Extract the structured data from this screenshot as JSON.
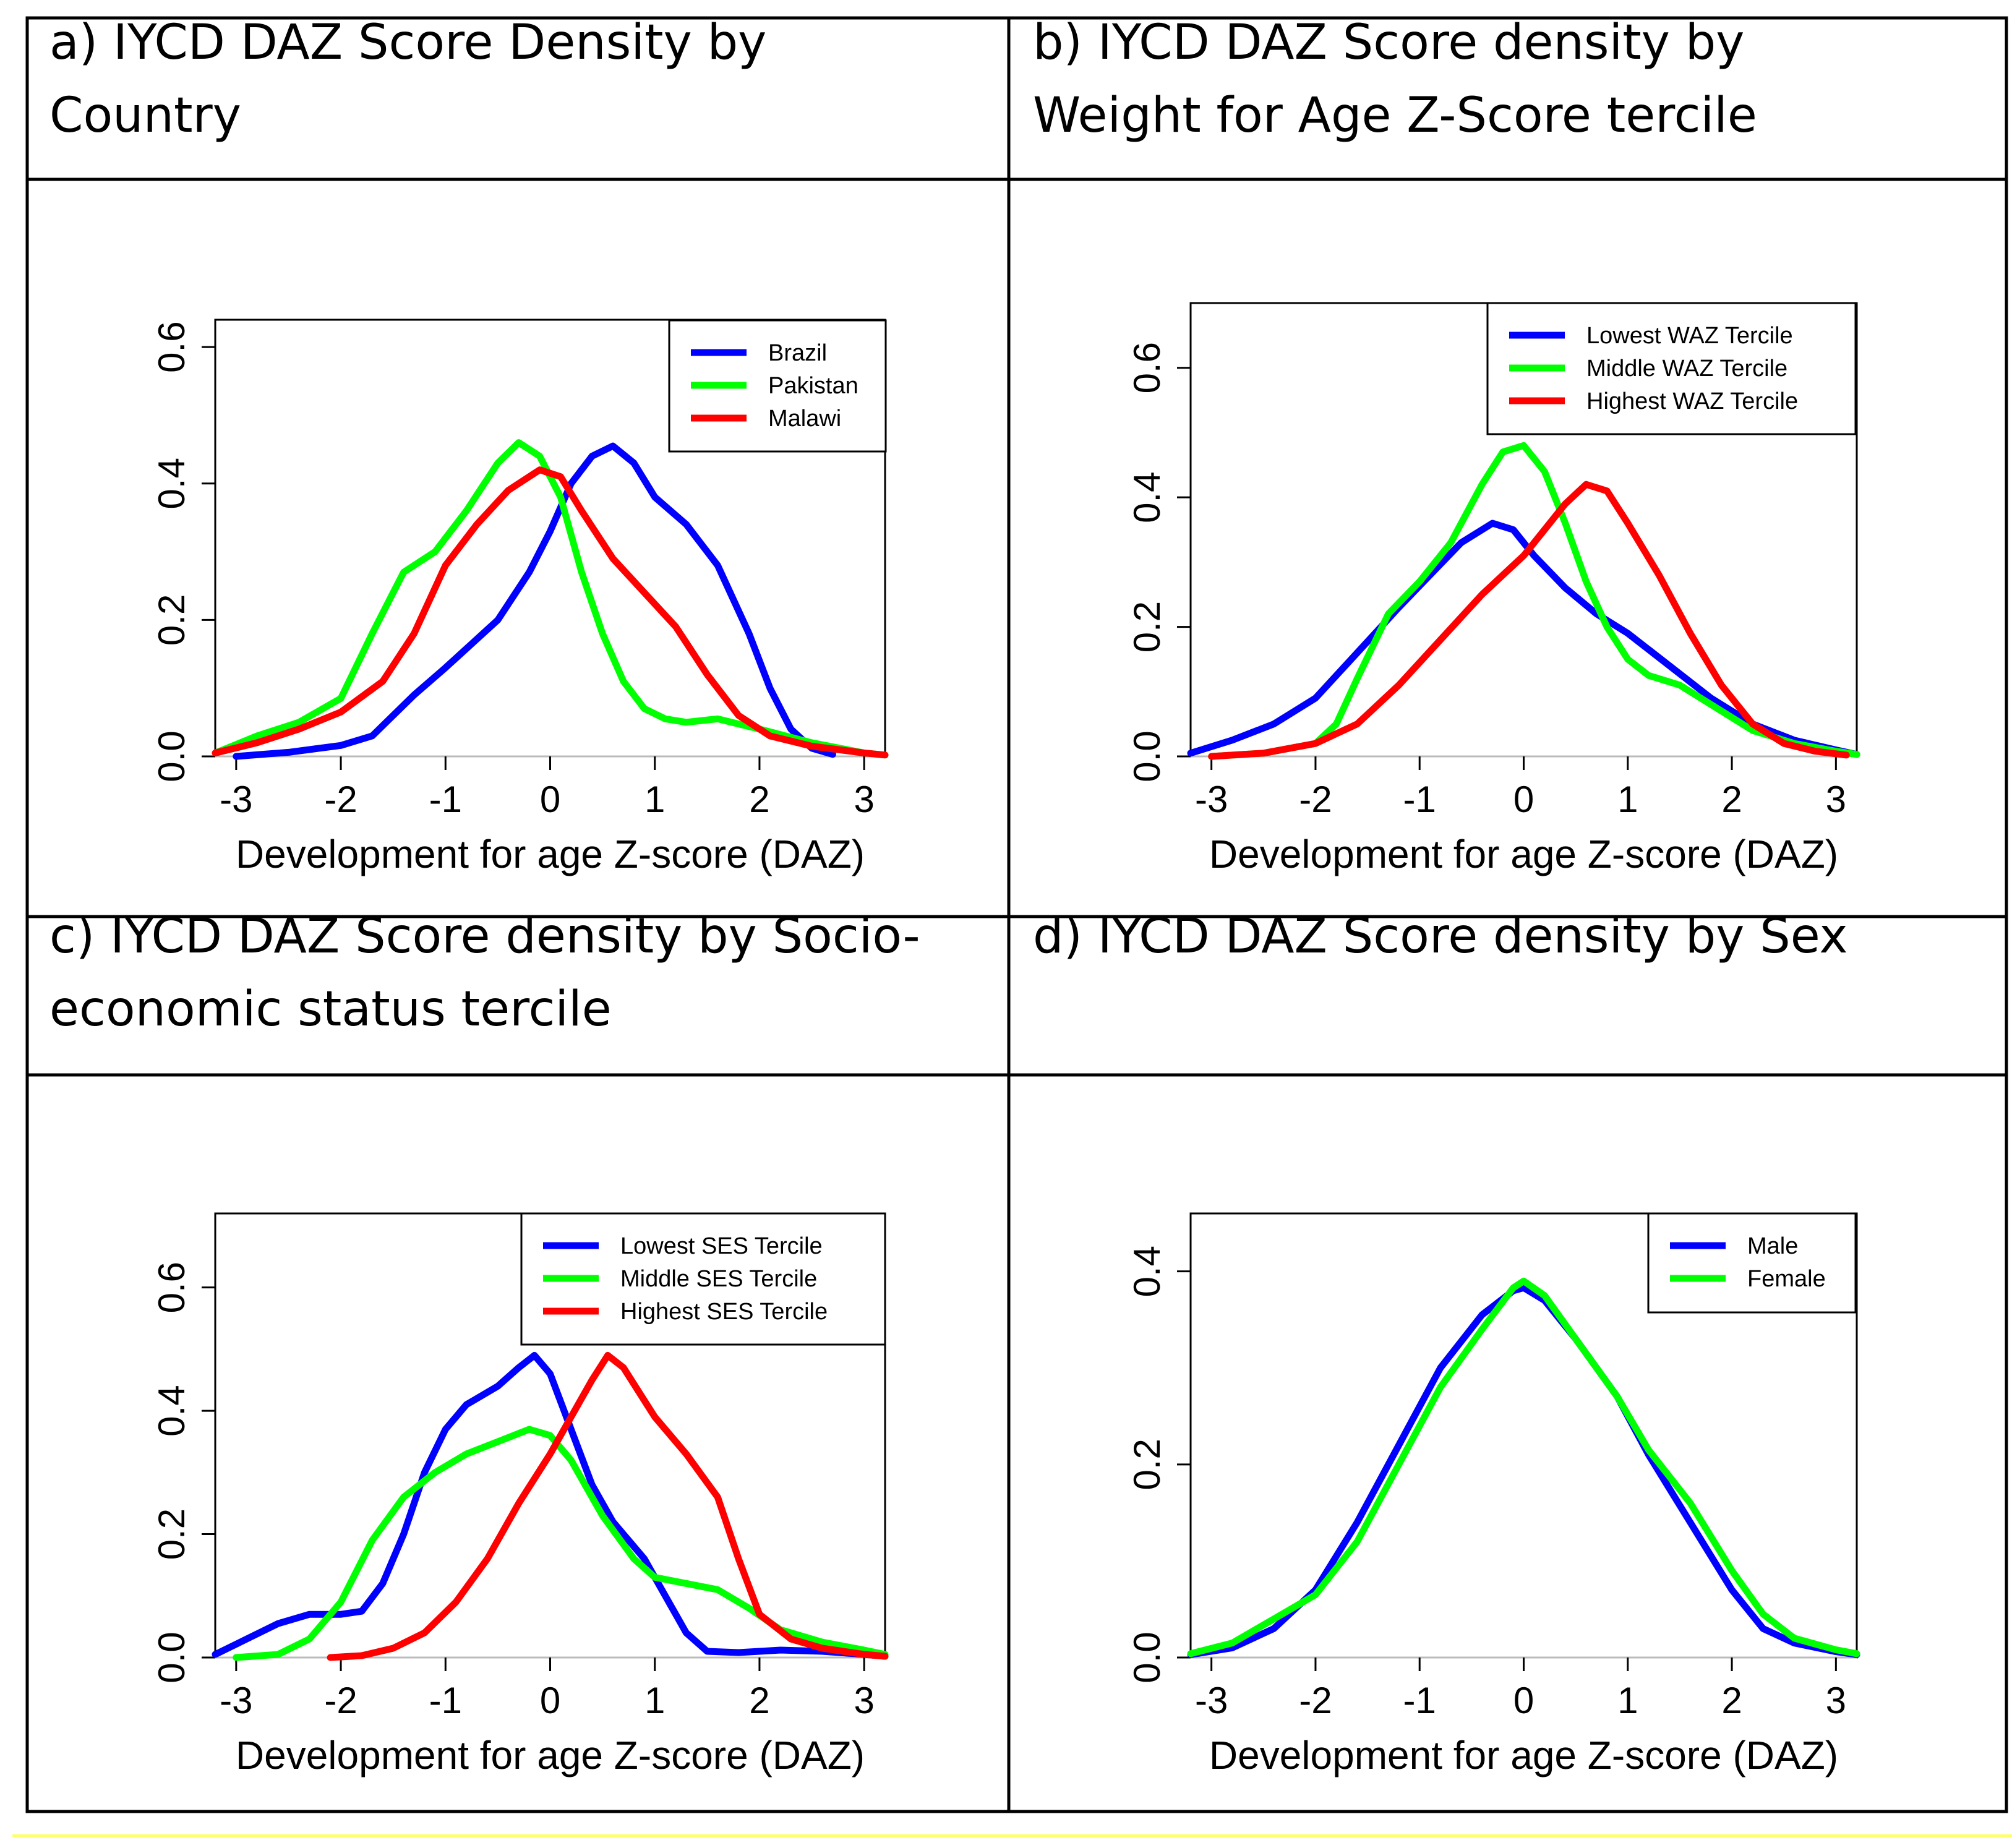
{
  "chart_data": [
    {
      "type": "line",
      "title": "a) IYCD DAZ Score Density by Country",
      "xlabel": "Development for age Z-score (DAZ)",
      "ylabel": "",
      "xlim": [
        -3.2,
        3.2
      ],
      "ylim": [
        0,
        0.64
      ],
      "xticks": [
        "-3",
        "-2",
        "-1",
        "0",
        "1",
        "2",
        "3"
      ],
      "yticks": [
        "0.0",
        "0.2",
        "0.4",
        "0.6"
      ],
      "legend_position": "top-right",
      "series": [
        {
          "name": "Brazil",
          "color": "#0000ff",
          "points": [
            [
              -3.0,
              0.0
            ],
            [
              -2.5,
              0.006
            ],
            [
              -2.0,
              0.016
            ],
            [
              -1.7,
              0.03
            ],
            [
              -1.3,
              0.09
            ],
            [
              -1.0,
              0.13
            ],
            [
              -0.5,
              0.2
            ],
            [
              -0.2,
              0.27
            ],
            [
              0.0,
              0.33
            ],
            [
              0.2,
              0.4
            ],
            [
              0.4,
              0.44
            ],
            [
              0.6,
              0.455
            ],
            [
              0.8,
              0.43
            ],
            [
              1.0,
              0.38
            ],
            [
              1.3,
              0.34
            ],
            [
              1.6,
              0.28
            ],
            [
              1.9,
              0.18
            ],
            [
              2.1,
              0.1
            ],
            [
              2.3,
              0.04
            ],
            [
              2.5,
              0.012
            ],
            [
              2.7,
              0.003
            ]
          ]
        },
        {
          "name": "Pakistan",
          "color": "#00ff00",
          "points": [
            [
              -3.2,
              0.005
            ],
            [
              -2.8,
              0.03
            ],
            [
              -2.4,
              0.05
            ],
            [
              -2.0,
              0.085
            ],
            [
              -1.7,
              0.18
            ],
            [
              -1.4,
              0.27
            ],
            [
              -1.1,
              0.3
            ],
            [
              -0.8,
              0.36
            ],
            [
              -0.5,
              0.43
            ],
            [
              -0.3,
              0.46
            ],
            [
              -0.1,
              0.44
            ],
            [
              0.1,
              0.38
            ],
            [
              0.3,
              0.27
            ],
            [
              0.5,
              0.18
            ],
            [
              0.7,
              0.11
            ],
            [
              0.9,
              0.07
            ],
            [
              1.1,
              0.055
            ],
            [
              1.3,
              0.05
            ],
            [
              1.6,
              0.055
            ],
            [
              2.0,
              0.04
            ],
            [
              2.5,
              0.02
            ],
            [
              3.0,
              0.005
            ],
            [
              3.2,
              0.002
            ]
          ]
        },
        {
          "name": "Malawi",
          "color": "#ff0000",
          "points": [
            [
              -3.2,
              0.005
            ],
            [
              -2.8,
              0.02
            ],
            [
              -2.4,
              0.04
            ],
            [
              -2.0,
              0.065
            ],
            [
              -1.6,
              0.11
            ],
            [
              -1.3,
              0.18
            ],
            [
              -1.0,
              0.28
            ],
            [
              -0.7,
              0.34
            ],
            [
              -0.4,
              0.39
            ],
            [
              -0.1,
              0.42
            ],
            [
              0.1,
              0.41
            ],
            [
              0.3,
              0.36
            ],
            [
              0.6,
              0.29
            ],
            [
              0.9,
              0.24
            ],
            [
              1.2,
              0.19
            ],
            [
              1.5,
              0.12
            ],
            [
              1.8,
              0.06
            ],
            [
              2.1,
              0.03
            ],
            [
              2.5,
              0.015
            ],
            [
              3.0,
              0.005
            ],
            [
              3.2,
              0.002
            ]
          ]
        }
      ]
    },
    {
      "type": "line",
      "title": "b) IYCD DAZ Score density by Weight for Age Z-Score tercile",
      "xlabel": "Development for age Z-score (DAZ)",
      "ylabel": "",
      "xlim": [
        -3.2,
        3.2
      ],
      "ylim": [
        0,
        0.7
      ],
      "xticks": [
        "-3",
        "-2",
        "-1",
        "0",
        "1",
        "2",
        "3"
      ],
      "yticks": [
        "0.0",
        "0.2",
        "0.4",
        "0.6"
      ],
      "legend_position": "top-right",
      "series": [
        {
          "name": "Lowest WAZ Tercile",
          "color": "#0000ff",
          "points": [
            [
              -3.2,
              0.005
            ],
            [
              -2.8,
              0.025
            ],
            [
              -2.4,
              0.05
            ],
            [
              -2.0,
              0.09
            ],
            [
              -1.6,
              0.16
            ],
            [
              -1.2,
              0.23
            ],
            [
              -0.9,
              0.28
            ],
            [
              -0.6,
              0.33
            ],
            [
              -0.3,
              0.36
            ],
            [
              -0.1,
              0.35
            ],
            [
              0.1,
              0.31
            ],
            [
              0.4,
              0.26
            ],
            [
              0.7,
              0.22
            ],
            [
              1.0,
              0.19
            ],
            [
              1.4,
              0.14
            ],
            [
              1.8,
              0.09
            ],
            [
              2.2,
              0.05
            ],
            [
              2.6,
              0.025
            ],
            [
              3.0,
              0.01
            ],
            [
              3.2,
              0.003
            ]
          ]
        },
        {
          "name": "Middle WAZ Tercile",
          "color": "#00ff00",
          "points": [
            [
              -3.0,
              0.0
            ],
            [
              -2.5,
              0.005
            ],
            [
              -2.0,
              0.02
            ],
            [
              -1.8,
              0.05
            ],
            [
              -1.6,
              0.12
            ],
            [
              -1.3,
              0.22
            ],
            [
              -1.0,
              0.27
            ],
            [
              -0.7,
              0.33
            ],
            [
              -0.4,
              0.42
            ],
            [
              -0.2,
              0.47
            ],
            [
              0.0,
              0.48
            ],
            [
              0.2,
              0.44
            ],
            [
              0.4,
              0.36
            ],
            [
              0.6,
              0.27
            ],
            [
              0.8,
              0.2
            ],
            [
              1.0,
              0.15
            ],
            [
              1.2,
              0.125
            ],
            [
              1.5,
              0.11
            ],
            [
              1.8,
              0.08
            ],
            [
              2.2,
              0.04
            ],
            [
              2.6,
              0.02
            ],
            [
              3.0,
              0.008
            ],
            [
              3.2,
              0.003
            ]
          ]
        },
        {
          "name": "Highest WAZ Tercile",
          "color": "#ff0000",
          "points": [
            [
              -3.0,
              0.0
            ],
            [
              -2.5,
              0.005
            ],
            [
              -2.0,
              0.02
            ],
            [
              -1.6,
              0.05
            ],
            [
              -1.2,
              0.11
            ],
            [
              -0.8,
              0.18
            ],
            [
              -0.4,
              0.25
            ],
            [
              0.0,
              0.31
            ],
            [
              0.2,
              0.35
            ],
            [
              0.4,
              0.39
            ],
            [
              0.6,
              0.42
            ],
            [
              0.8,
              0.41
            ],
            [
              1.0,
              0.36
            ],
            [
              1.3,
              0.28
            ],
            [
              1.6,
              0.19
            ],
            [
              1.9,
              0.11
            ],
            [
              2.2,
              0.05
            ],
            [
              2.5,
              0.02
            ],
            [
              2.8,
              0.008
            ],
            [
              3.1,
              0.002
            ]
          ]
        }
      ]
    },
    {
      "type": "line",
      "title": "c) IYCD DAZ Score density by Socio-economic status tercile",
      "xlabel": "Development for age Z-score (DAZ)",
      "ylabel": "",
      "xlim": [
        -3.2,
        3.2
      ],
      "ylim": [
        0,
        0.72
      ],
      "xticks": [
        "-3",
        "-2",
        "-1",
        "0",
        "1",
        "2",
        "3"
      ],
      "yticks": [
        "0.0",
        "0.2",
        "0.4",
        "0.6"
      ],
      "legend_position": "top-right",
      "series": [
        {
          "name": "Lowest SES Tercile",
          "color": "#0000ff",
          "points": [
            [
              -3.2,
              0.005
            ],
            [
              -2.9,
              0.03
            ],
            [
              -2.6,
              0.055
            ],
            [
              -2.3,
              0.07
            ],
            [
              -2.0,
              0.07
            ],
            [
              -1.8,
              0.075
            ],
            [
              -1.6,
              0.12
            ],
            [
              -1.4,
              0.2
            ],
            [
              -1.2,
              0.3
            ],
            [
              -1.0,
              0.37
            ],
            [
              -0.8,
              0.41
            ],
            [
              -0.5,
              0.44
            ],
            [
              -0.3,
              0.47
            ],
            [
              -0.15,
              0.49
            ],
            [
              0.0,
              0.46
            ],
            [
              0.2,
              0.37
            ],
            [
              0.4,
              0.28
            ],
            [
              0.6,
              0.22
            ],
            [
              0.9,
              0.16
            ],
            [
              1.1,
              0.1
            ],
            [
              1.3,
              0.04
            ],
            [
              1.5,
              0.01
            ],
            [
              1.8,
              0.008
            ],
            [
              2.2,
              0.012
            ],
            [
              2.6,
              0.01
            ],
            [
              3.0,
              0.005
            ],
            [
              3.2,
              0.002
            ]
          ]
        },
        {
          "name": "Middle SES Tercile",
          "color": "#00ff00",
          "points": [
            [
              -3.0,
              0.0
            ],
            [
              -2.6,
              0.005
            ],
            [
              -2.3,
              0.03
            ],
            [
              -2.0,
              0.09
            ],
            [
              -1.7,
              0.19
            ],
            [
              -1.4,
              0.26
            ],
            [
              -1.1,
              0.3
            ],
            [
              -0.8,
              0.33
            ],
            [
              -0.5,
              0.35
            ],
            [
              -0.2,
              0.37
            ],
            [
              0.0,
              0.36
            ],
            [
              0.2,
              0.32
            ],
            [
              0.5,
              0.23
            ],
            [
              0.8,
              0.16
            ],
            [
              1.0,
              0.13
            ],
            [
              1.3,
              0.12
            ],
            [
              1.6,
              0.11
            ],
            [
              1.9,
              0.08
            ],
            [
              2.2,
              0.045
            ],
            [
              2.6,
              0.025
            ],
            [
              3.0,
              0.012
            ],
            [
              3.2,
              0.005
            ]
          ]
        },
        {
          "name": "Highest SES Tercile",
          "color": "#ff0000",
          "points": [
            [
              -2.1,
              0.0
            ],
            [
              -1.8,
              0.003
            ],
            [
              -1.5,
              0.015
            ],
            [
              -1.2,
              0.04
            ],
            [
              -0.9,
              0.09
            ],
            [
              -0.6,
              0.16
            ],
            [
              -0.3,
              0.25
            ],
            [
              0.0,
              0.33
            ],
            [
              0.2,
              0.39
            ],
            [
              0.4,
              0.45
            ],
            [
              0.55,
              0.49
            ],
            [
              0.7,
              0.47
            ],
            [
              1.0,
              0.39
            ],
            [
              1.3,
              0.33
            ],
            [
              1.6,
              0.26
            ],
            [
              1.8,
              0.16
            ],
            [
              2.0,
              0.07
            ],
            [
              2.3,
              0.03
            ],
            [
              2.6,
              0.015
            ],
            [
              3.0,
              0.005
            ],
            [
              3.2,
              0.002
            ]
          ]
        }
      ]
    },
    {
      "type": "line",
      "title": "d) IYCD DAZ Score density by Sex",
      "xlabel": "Development for age Z-score (DAZ)",
      "ylabel": "",
      "xlim": [
        -3.2,
        3.2
      ],
      "ylim": [
        0,
        0.46
      ],
      "xticks": [
        "-3",
        "-2",
        "-1",
        "0",
        "1",
        "2",
        "3"
      ],
      "yticks": [
        "0.0",
        "0.2",
        "0.4"
      ],
      "legend_position": "top-right",
      "series": [
        {
          "name": "Male",
          "color": "#0000ff",
          "points": [
            [
              -3.2,
              0.003
            ],
            [
              -2.8,
              0.01
            ],
            [
              -2.4,
              0.03
            ],
            [
              -2.0,
              0.07
            ],
            [
              -1.6,
              0.14
            ],
            [
              -1.2,
              0.22
            ],
            [
              -0.8,
              0.3
            ],
            [
              -0.4,
              0.355
            ],
            [
              -0.1,
              0.38
            ],
            [
              0.0,
              0.383
            ],
            [
              0.2,
              0.37
            ],
            [
              0.5,
              0.33
            ],
            [
              0.9,
              0.27
            ],
            [
              1.2,
              0.21
            ],
            [
              1.6,
              0.14
            ],
            [
              2.0,
              0.07
            ],
            [
              2.3,
              0.03
            ],
            [
              2.6,
              0.015
            ],
            [
              3.0,
              0.006
            ],
            [
              3.2,
              0.003
            ]
          ]
        },
        {
          "name": "Female",
          "color": "#00ff00",
          "points": [
            [
              -3.2,
              0.004
            ],
            [
              -2.8,
              0.015
            ],
            [
              -2.4,
              0.04
            ],
            [
              -2.0,
              0.065
            ],
            [
              -1.6,
              0.12
            ],
            [
              -1.2,
              0.2
            ],
            [
              -0.8,
              0.28
            ],
            [
              -0.4,
              0.34
            ],
            [
              -0.1,
              0.383
            ],
            [
              0.0,
              0.39
            ],
            [
              0.2,
              0.375
            ],
            [
              0.5,
              0.33
            ],
            [
              0.9,
              0.27
            ],
            [
              1.2,
              0.215
            ],
            [
              1.6,
              0.16
            ],
            [
              2.0,
              0.09
            ],
            [
              2.3,
              0.045
            ],
            [
              2.6,
              0.02
            ],
            [
              3.0,
              0.008
            ],
            [
              3.2,
              0.004
            ]
          ]
        }
      ]
    }
  ]
}
